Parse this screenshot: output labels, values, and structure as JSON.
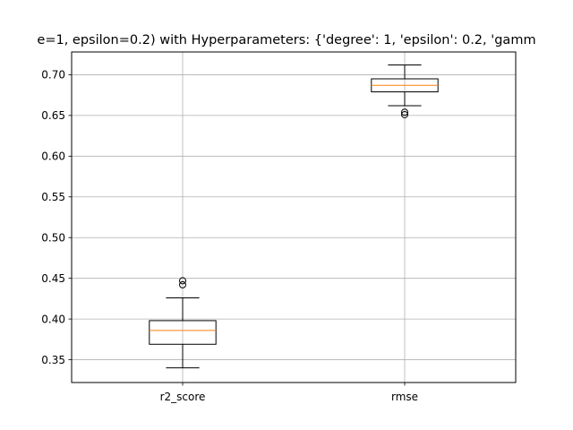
{
  "chart_data": {
    "type": "box",
    "title": "e=1, epsilon=0.2) with Hyperparameters: {'degree': 1, 'epsilon': 0.2, 'gamm",
    "xlabel": "",
    "ylabel": "",
    "categories": [
      "r2_score",
      "rmse"
    ],
    "ylim": [
      0.322,
      0.728
    ],
    "yticks": [
      0.35,
      0.4,
      0.45,
      0.5,
      0.55,
      0.6,
      0.65,
      0.7
    ],
    "ytick_labels": [
      "0.35",
      "0.40",
      "0.45",
      "0.50",
      "0.55",
      "0.60",
      "0.65",
      "0.70"
    ],
    "grid": true,
    "boxes": [
      {
        "category": "r2_score",
        "whisker_low": 0.34,
        "q1": 0.369,
        "median": 0.386,
        "q3": 0.398,
        "whisker_high": 0.426,
        "outliers": [
          0.442,
          0.447
        ]
      },
      {
        "category": "rmse",
        "whisker_low": 0.662,
        "q1": 0.679,
        "median": 0.687,
        "q3": 0.695,
        "whisker_high": 0.712,
        "outliers": [
          0.651,
          0.654
        ]
      }
    ],
    "colors": {
      "box": "#000000",
      "median": "#ff7f0e",
      "grid": "#b0b0b0",
      "outlier": "#000000"
    }
  }
}
